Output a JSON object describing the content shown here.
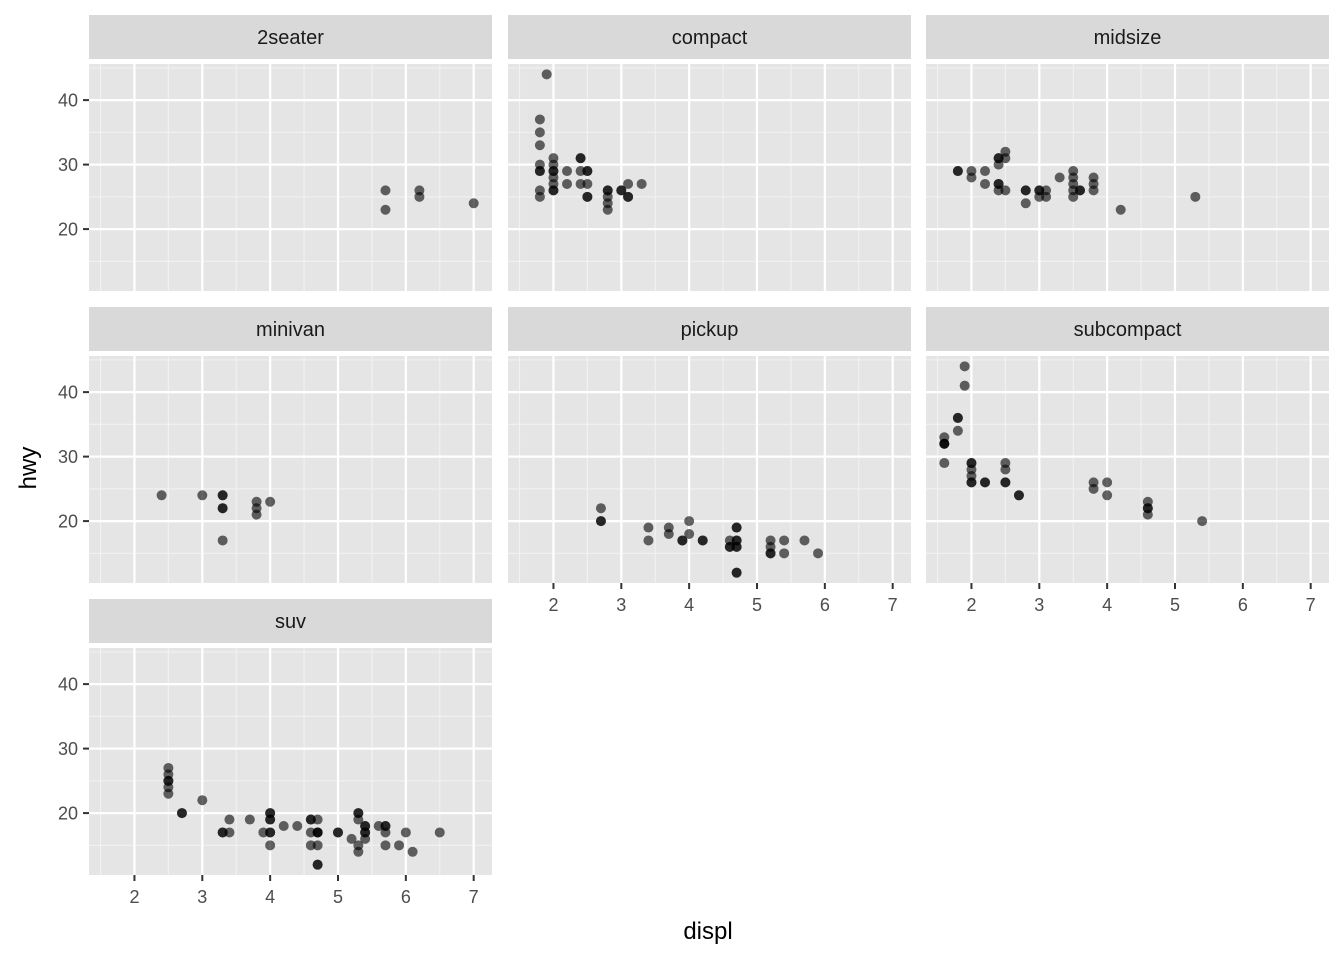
{
  "chart_data": {
    "type": "scatter",
    "xlabel": "displ",
    "ylabel": "hwy",
    "xlim": [
      1.33,
      7.27
    ],
    "ylim": [
      10.4,
      45.6
    ],
    "x_ticks": [
      2,
      3,
      4,
      5,
      6,
      7
    ],
    "y_ticks": [
      20,
      30,
      40
    ],
    "grid": true,
    "point_color": "#000000",
    "point_opacity": 0.6,
    "panel_background": "#e5e5e5",
    "strip_background": "#d9d9d9",
    "panels": [
      {
        "name": "2seater",
        "points": [
          [
            5.7,
            26
          ],
          [
            5.7,
            23
          ],
          [
            6.2,
            26
          ],
          [
            6.2,
            25
          ],
          [
            7.0,
            24
          ]
        ]
      },
      {
        "name": "compact",
        "points": [
          [
            1.8,
            37
          ],
          [
            1.8,
            35
          ],
          [
            1.8,
            33
          ],
          [
            1.8,
            30
          ],
          [
            1.8,
            29
          ],
          [
            1.8,
            29
          ],
          [
            1.8,
            26
          ],
          [
            1.8,
            25
          ],
          [
            1.9,
            44
          ],
          [
            2.0,
            31
          ],
          [
            2.0,
            30
          ],
          [
            2.0,
            29
          ],
          [
            2.0,
            29
          ],
          [
            2.0,
            28
          ],
          [
            2.0,
            27
          ],
          [
            2.0,
            26
          ],
          [
            2.0,
            26
          ],
          [
            2.2,
            29
          ],
          [
            2.2,
            27
          ],
          [
            2.4,
            31
          ],
          [
            2.4,
            31
          ],
          [
            2.4,
            29
          ],
          [
            2.4,
            27
          ],
          [
            2.5,
            29
          ],
          [
            2.5,
            29
          ],
          [
            2.5,
            27
          ],
          [
            2.5,
            25
          ],
          [
            2.5,
            25
          ],
          [
            2.8,
            26
          ],
          [
            2.8,
            26
          ],
          [
            2.8,
            25
          ],
          [
            2.8,
            24
          ],
          [
            2.8,
            23
          ],
          [
            3.0,
            26
          ],
          [
            3.0,
            26
          ],
          [
            3.1,
            27
          ],
          [
            3.1,
            25
          ],
          [
            3.1,
            25
          ],
          [
            3.3,
            27
          ]
        ]
      },
      {
        "name": "midsize",
        "points": [
          [
            1.8,
            29
          ],
          [
            1.8,
            29
          ],
          [
            2.0,
            29
          ],
          [
            2.0,
            28
          ],
          [
            2.2,
            29
          ],
          [
            2.2,
            27
          ],
          [
            2.4,
            31
          ],
          [
            2.4,
            31
          ],
          [
            2.4,
            30
          ],
          [
            2.4,
            27
          ],
          [
            2.4,
            27
          ],
          [
            2.4,
            26
          ],
          [
            2.5,
            32
          ],
          [
            2.5,
            31
          ],
          [
            2.5,
            26
          ],
          [
            2.8,
            26
          ],
          [
            2.8,
            26
          ],
          [
            2.8,
            24
          ],
          [
            3.0,
            26
          ],
          [
            3.0,
            26
          ],
          [
            3.0,
            25
          ],
          [
            3.1,
            26
          ],
          [
            3.1,
            25
          ],
          [
            3.3,
            28
          ],
          [
            3.5,
            29
          ],
          [
            3.5,
            28
          ],
          [
            3.5,
            27
          ],
          [
            3.5,
            26
          ],
          [
            3.5,
            25
          ],
          [
            3.6,
            26
          ],
          [
            3.6,
            26
          ],
          [
            3.8,
            28
          ],
          [
            3.8,
            27
          ],
          [
            3.8,
            26
          ],
          [
            4.2,
            23
          ],
          [
            5.3,
            25
          ]
        ]
      },
      {
        "name": "minivan",
        "points": [
          [
            2.4,
            24
          ],
          [
            3.0,
            24
          ],
          [
            3.3,
            24
          ],
          [
            3.3,
            24
          ],
          [
            3.3,
            22
          ],
          [
            3.3,
            22
          ],
          [
            3.3,
            17
          ],
          [
            3.8,
            23
          ],
          [
            3.8,
            22
          ],
          [
            3.8,
            21
          ],
          [
            4.0,
            23
          ]
        ]
      },
      {
        "name": "pickup",
        "points": [
          [
            2.7,
            22
          ],
          [
            2.7,
            20
          ],
          [
            2.7,
            20
          ],
          [
            3.4,
            19
          ],
          [
            3.4,
            17
          ],
          [
            3.7,
            19
          ],
          [
            3.7,
            18
          ],
          [
            3.9,
            17
          ],
          [
            3.9,
            17
          ],
          [
            4.0,
            20
          ],
          [
            4.0,
            18
          ],
          [
            4.2,
            17
          ],
          [
            4.2,
            17
          ],
          [
            4.6,
            17
          ],
          [
            4.6,
            16
          ],
          [
            4.6,
            16
          ],
          [
            4.7,
            19
          ],
          [
            4.7,
            19
          ],
          [
            4.7,
            17
          ],
          [
            4.7,
            17
          ],
          [
            4.7,
            16
          ],
          [
            4.7,
            16
          ],
          [
            4.7,
            12
          ],
          [
            4.7,
            12
          ],
          [
            5.2,
            17
          ],
          [
            5.2,
            16
          ],
          [
            5.2,
            15
          ],
          [
            5.2,
            15
          ],
          [
            5.4,
            17
          ],
          [
            5.4,
            15
          ],
          [
            5.7,
            17
          ],
          [
            5.9,
            15
          ]
        ]
      },
      {
        "name": "subcompact",
        "points": [
          [
            1.6,
            33
          ],
          [
            1.6,
            32
          ],
          [
            1.6,
            32
          ],
          [
            1.6,
            32
          ],
          [
            1.6,
            29
          ],
          [
            1.8,
            36
          ],
          [
            1.8,
            36
          ],
          [
            1.8,
            34
          ],
          [
            1.9,
            44
          ],
          [
            1.9,
            41
          ],
          [
            2.0,
            29
          ],
          [
            2.0,
            29
          ],
          [
            2.0,
            28
          ],
          [
            2.0,
            27
          ],
          [
            2.0,
            26
          ],
          [
            2.0,
            26
          ],
          [
            2.2,
            26
          ],
          [
            2.2,
            26
          ],
          [
            2.5,
            29
          ],
          [
            2.5,
            28
          ],
          [
            2.5,
            26
          ],
          [
            2.5,
            26
          ],
          [
            2.7,
            24
          ],
          [
            2.7,
            24
          ],
          [
            3.8,
            26
          ],
          [
            3.8,
            25
          ],
          [
            4.0,
            26
          ],
          [
            4.0,
            24
          ],
          [
            4.6,
            23
          ],
          [
            4.6,
            22
          ],
          [
            4.6,
            22
          ],
          [
            4.6,
            21
          ],
          [
            5.4,
            20
          ]
        ]
      },
      {
        "name": "suv",
        "points": [
          [
            2.5,
            27
          ],
          [
            2.5,
            26
          ],
          [
            2.5,
            25
          ],
          [
            2.5,
            25
          ],
          [
            2.5,
            24
          ],
          [
            2.5,
            23
          ],
          [
            2.7,
            20
          ],
          [
            2.7,
            20
          ],
          [
            3.0,
            22
          ],
          [
            3.3,
            17
          ],
          [
            3.3,
            17
          ],
          [
            3.4,
            19
          ],
          [
            3.4,
            17
          ],
          [
            3.7,
            19
          ],
          [
            3.9,
            17
          ],
          [
            4.0,
            20
          ],
          [
            4.0,
            20
          ],
          [
            4.0,
            19
          ],
          [
            4.0,
            19
          ],
          [
            4.0,
            17
          ],
          [
            4.0,
            17
          ],
          [
            4.0,
            15
          ],
          [
            4.2,
            18
          ],
          [
            4.4,
            18
          ],
          [
            4.6,
            19
          ],
          [
            4.6,
            19
          ],
          [
            4.6,
            17
          ],
          [
            4.6,
            15
          ],
          [
            4.7,
            19
          ],
          [
            4.7,
            17
          ],
          [
            4.7,
            17
          ],
          [
            4.7,
            17
          ],
          [
            4.7,
            15
          ],
          [
            4.7,
            12
          ],
          [
            4.7,
            12
          ],
          [
            5.0,
            17
          ],
          [
            5.0,
            17
          ],
          [
            5.2,
            16
          ],
          [
            5.3,
            20
          ],
          [
            5.3,
            20
          ],
          [
            5.3,
            19
          ],
          [
            5.3,
            15
          ],
          [
            5.3,
            14
          ],
          [
            5.4,
            18
          ],
          [
            5.4,
            18
          ],
          [
            5.4,
            17
          ],
          [
            5.4,
            17
          ],
          [
            5.4,
            16
          ],
          [
            5.6,
            18
          ],
          [
            5.7,
            18
          ],
          [
            5.7,
            18
          ],
          [
            5.7,
            17
          ],
          [
            5.7,
            15
          ],
          [
            5.9,
            15
          ],
          [
            6.0,
            17
          ],
          [
            6.1,
            14
          ],
          [
            6.5,
            17
          ]
        ]
      }
    ]
  }
}
